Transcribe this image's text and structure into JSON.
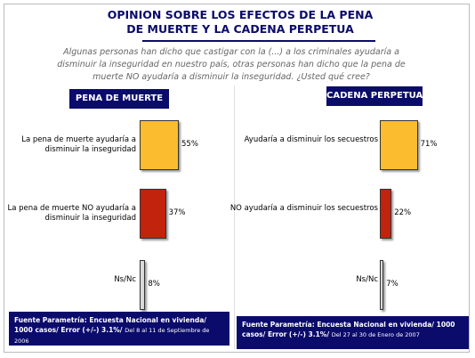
{
  "title": "OPINION SOBRE LOS EFECTOS DE LA PENA DE MUERTE Y LA CADENA PERPETUA",
  "question": "Algunas personas han dicho que castigar con la (...) a los criminales ayudaría a disminuir la inseguridad en nuestro país, otras personas han dicho que la pena de muerte NO ayudaría a disminuir la inseguridad. ¿Usted qué cree?",
  "chart_data": [
    {
      "type": "bar",
      "title": "PENA DE MUERTE",
      "categories": [
        "La pena de muerte ayudaría a disminuir la inseguridad",
        "La pena de muerte NO ayudaría a disminuir la inseguridad",
        "Ns/Nc"
      ],
      "values": [
        55,
        37,
        8
      ],
      "value_labels": [
        "55%",
        "37%",
        "8%"
      ],
      "colors": [
        "#fbbd2f",
        "#c1230c",
        "#d9d9d9"
      ],
      "source": "Fuente Parametría: Encuesta Nacional en vivienda/ 1000 casos/ Error (+/-) 3.1%/",
      "dates": "Del 8 al 11 de Septiembre de 2006"
    },
    {
      "type": "bar",
      "title": "CADENA PERPETUA",
      "categories": [
        "Ayudaría a disminuir los secuestros",
        "NO ayudaría a disminuir los secuestros",
        "Ns/Nc"
      ],
      "values": [
        71,
        22,
        7
      ],
      "value_labels": [
        "71%",
        "22%",
        "7%"
      ],
      "colors": [
        "#fbbd2f",
        "#c1230c",
        "#d9d9d9"
      ],
      "source": "Fuente Parametría: Encuesta Nacional en vivienda/ 1000 casos/ Error (+/-) 3.1%/",
      "dates": "Del 27 al 30 de Enero de 2007"
    }
  ]
}
